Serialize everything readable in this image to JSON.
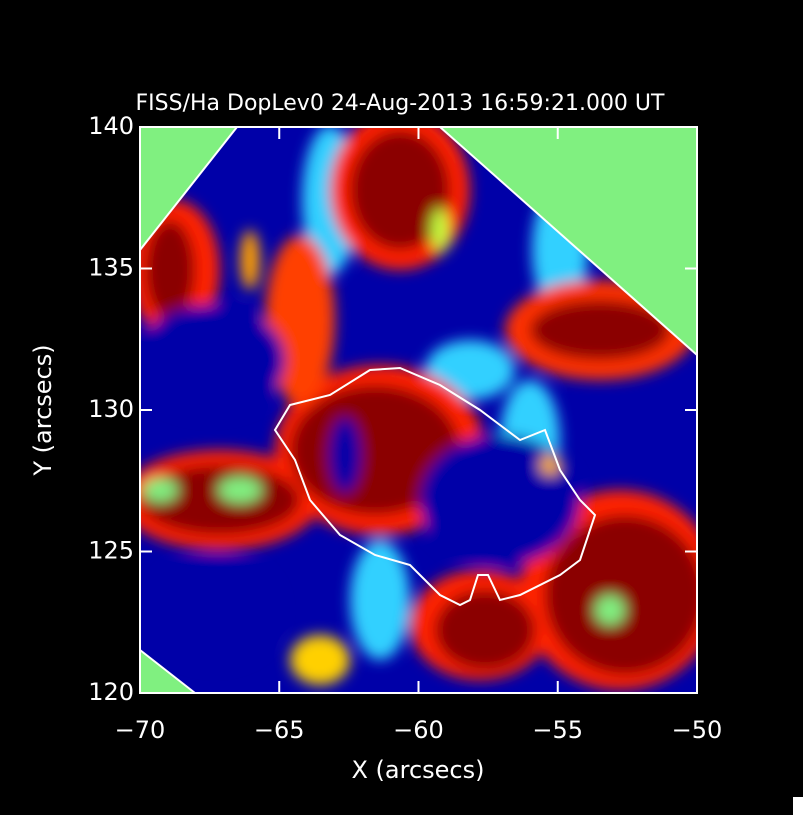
{
  "chart_data": {
    "type": "image",
    "title": "FISS/Ha DopLev0 24-Aug-2013 16:59:21.000 UT",
    "xlabel": "X (arcsecs)",
    "ylabel": "Y (arcsecs)",
    "xlim": [
      -70,
      -50
    ],
    "ylim": [
      120,
      140
    ],
    "xticks": [
      {
        "value": -70,
        "label": "−70"
      },
      {
        "value": -65,
        "label": "−65"
      },
      {
        "value": -60,
        "label": "−60"
      },
      {
        "value": -55,
        "label": "−55"
      },
      {
        "value": -50,
        "label": "−50"
      }
    ],
    "yticks": [
      120,
      125,
      130,
      135,
      140
    ]
  }
}
